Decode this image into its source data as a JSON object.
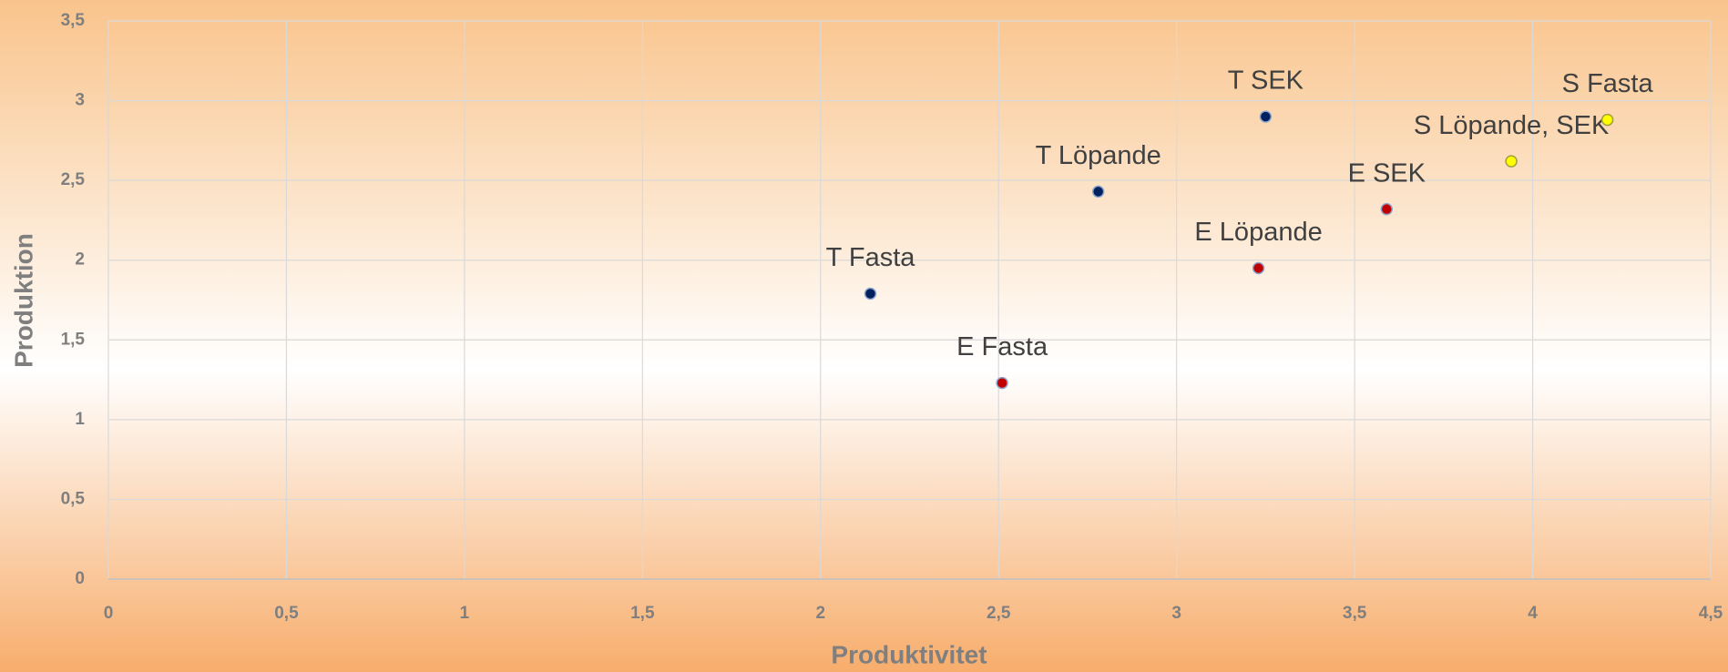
{
  "chart_data": {
    "type": "scatter",
    "x_label": "Produktivitet",
    "y_label": "Produktion",
    "xlim": [
      0,
      4.5
    ],
    "xticks": [
      0,
      {
        "value": 0.5,
        "label": "0,5"
      },
      1,
      {
        "value": 1.5,
        "label": "1,5"
      },
      2,
      {
        "value": 2.5,
        "label": "2,5"
      },
      3,
      {
        "value": 3.5,
        "label": "3,5"
      },
      4,
      {
        "value": 4.5,
        "label": "4,5"
      }
    ],
    "ylim": [
      0,
      3.5
    ],
    "yticks": [
      0,
      {
        "value": 0.5,
        "label": "0,5"
      },
      1,
      {
        "value": 1.5,
        "label": "1,5"
      },
      2,
      {
        "value": 2.5,
        "label": "2,5"
      },
      3,
      {
        "value": 3.5,
        "label": "3,5"
      }
    ],
    "grid": true,
    "series": [
      {
        "color": "#002060",
        "x": [
          2.14,
          2.78,
          3.25
        ],
        "values": [
          1.79,
          2.43,
          2.9
        ],
        "labels": [
          "T Fasta",
          "T Löpande",
          "T SEK"
        ]
      },
      {
        "color": "#c00000",
        "x": [
          2.51,
          3.23,
          3.59
        ],
        "values": [
          1.23,
          1.95,
          2.32
        ],
        "labels": [
          "E Fasta",
          "E Löpande",
          "E SEK"
        ]
      },
      {
        "color": "#ffff00",
        "x": [
          3.94,
          4.21
        ],
        "values": [
          2.62,
          2.88
        ],
        "labels": [
          "S Löpande, SEK",
          "S Fasta"
        ]
      }
    ]
  }
}
